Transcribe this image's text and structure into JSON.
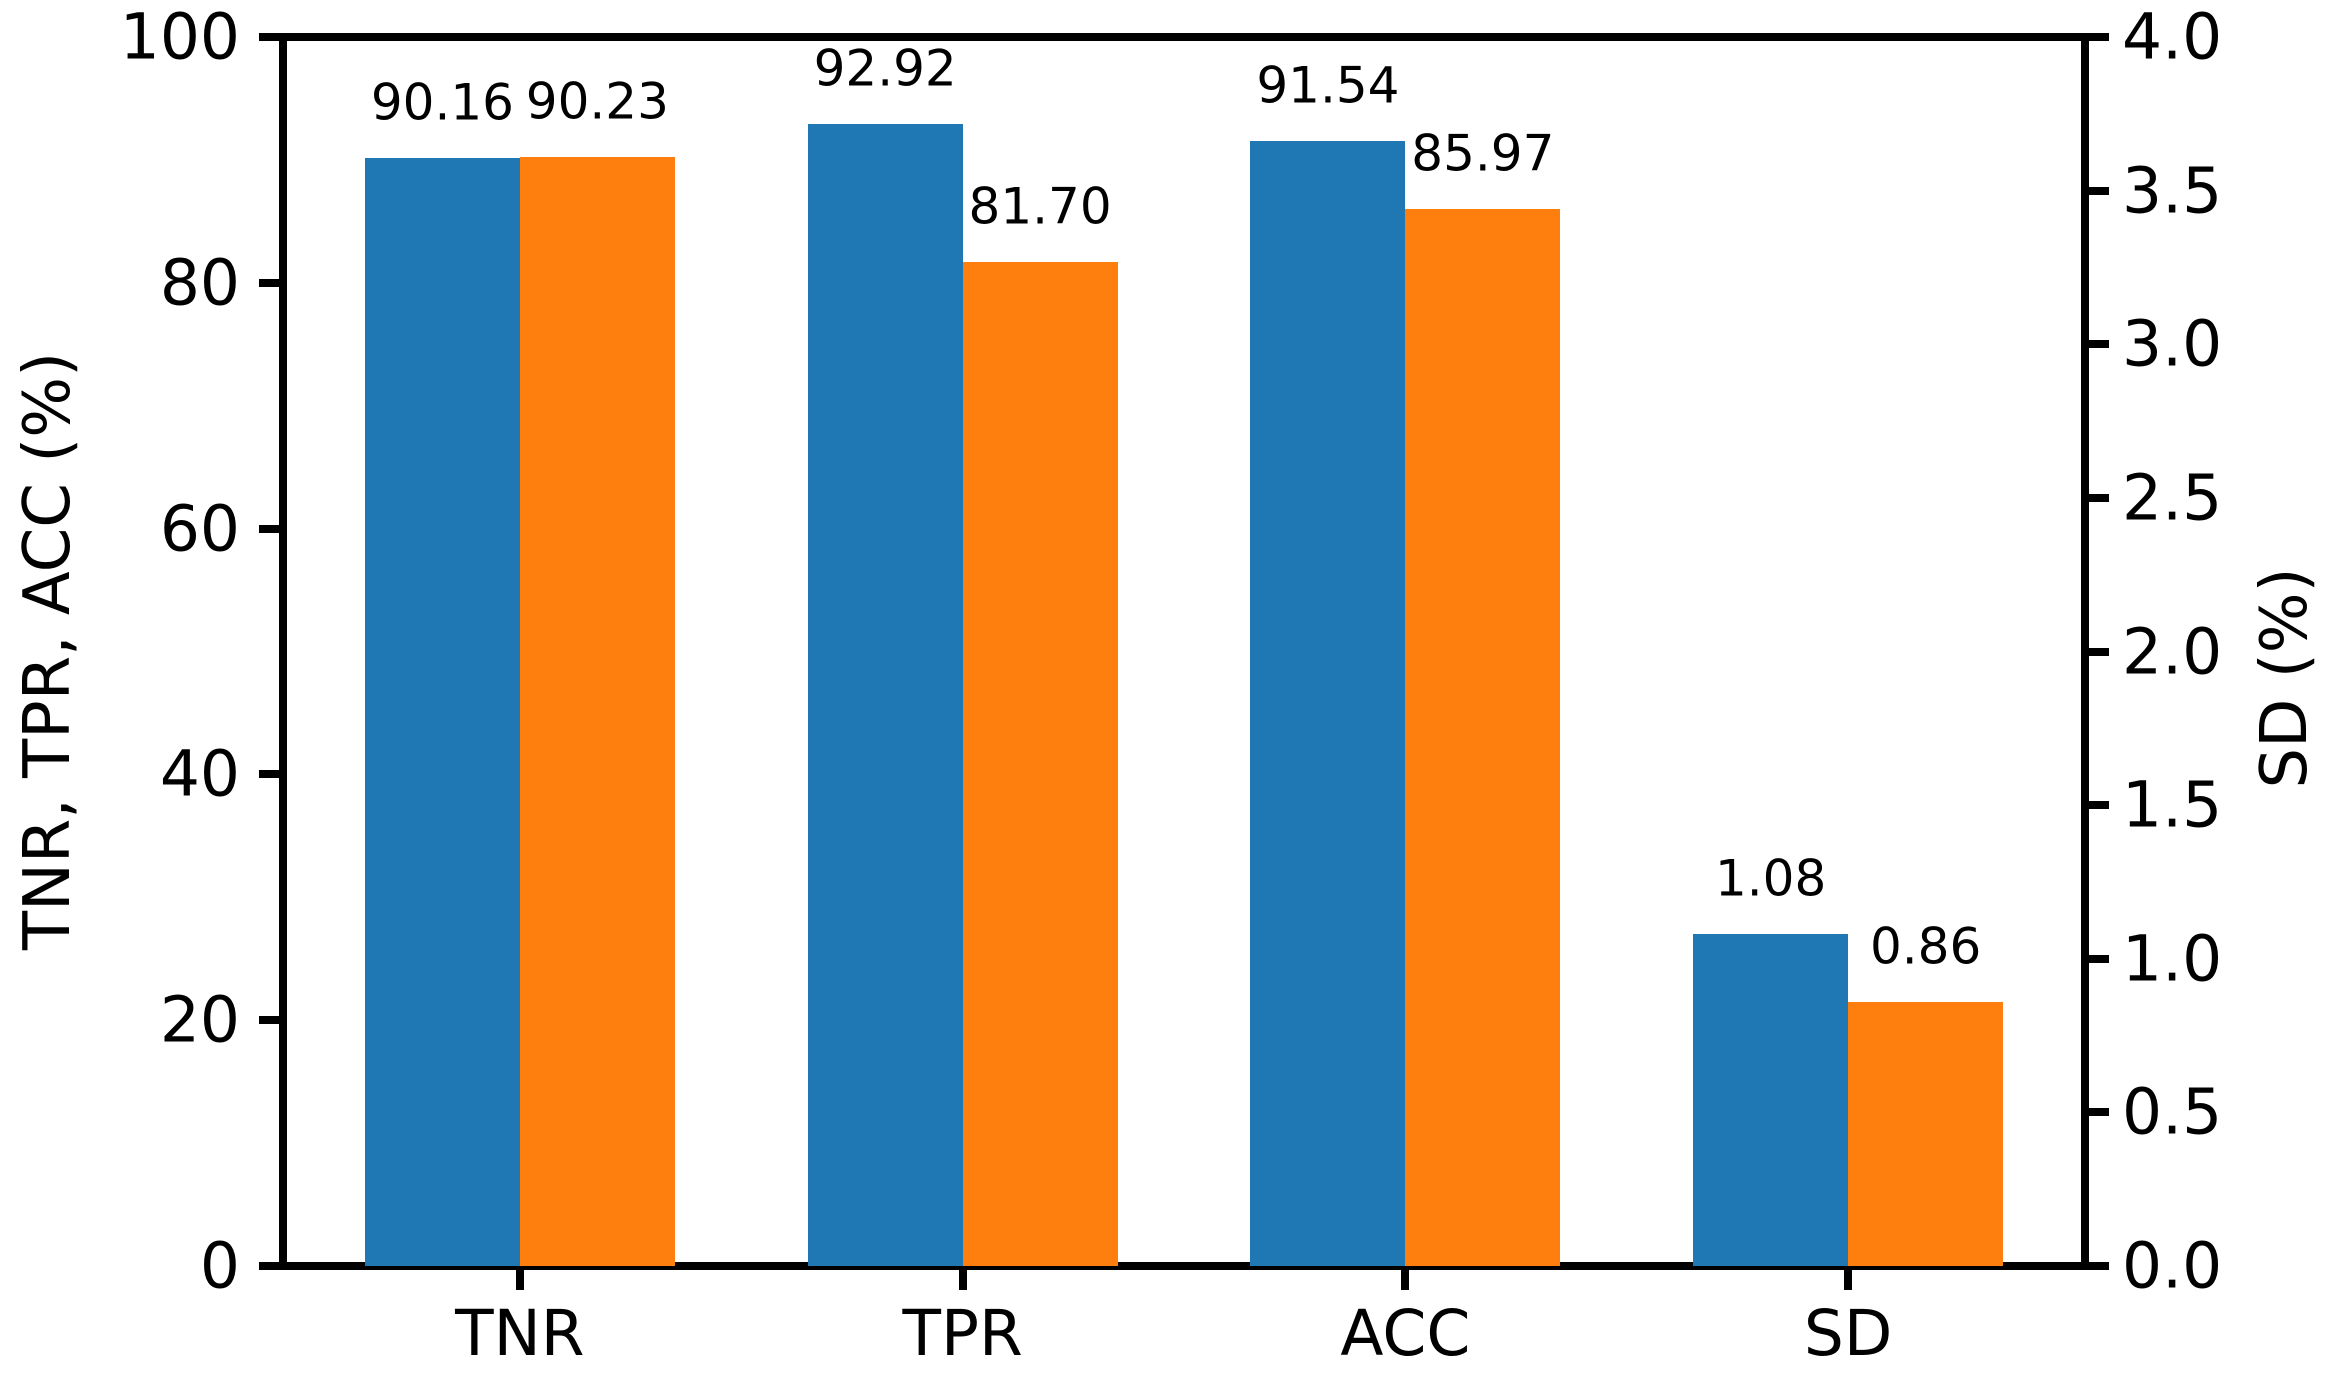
{
  "chart_data": {
    "type": "bar",
    "title": "",
    "grid": false,
    "legend": null,
    "categories": [
      "TNR",
      "TPR",
      "ACC",
      "SD"
    ],
    "series": [
      {
        "name": "series-blue",
        "color": "#1f77b4",
        "values": [
          90.16,
          92.92,
          91.54,
          1.08
        ],
        "value_labels": [
          "90.16",
          "92.92",
          "91.54",
          "1.08"
        ]
      },
      {
        "name": "series-orange",
        "color": "#ff7f0e",
        "values": [
          90.23,
          81.7,
          85.97,
          0.86
        ],
        "value_labels": [
          "90.23",
          "81.70",
          "85.97",
          "0.86"
        ]
      }
    ],
    "category_axis_assignment": [
      "left",
      "left",
      "left",
      "right"
    ],
    "left_axis": {
      "label": "TNR, TPR, ACC (%)",
      "min": 0,
      "max": 100,
      "ticks": [
        "0",
        "20",
        "40",
        "60",
        "80",
        "100"
      ]
    },
    "right_axis": {
      "label": "SD (%)",
      "min": 0,
      "max": 4,
      "ticks": [
        "0.0",
        "0.5",
        "1.0",
        "1.5",
        "2.0",
        "2.5",
        "3.0",
        "3.5",
        "4.0"
      ]
    }
  }
}
